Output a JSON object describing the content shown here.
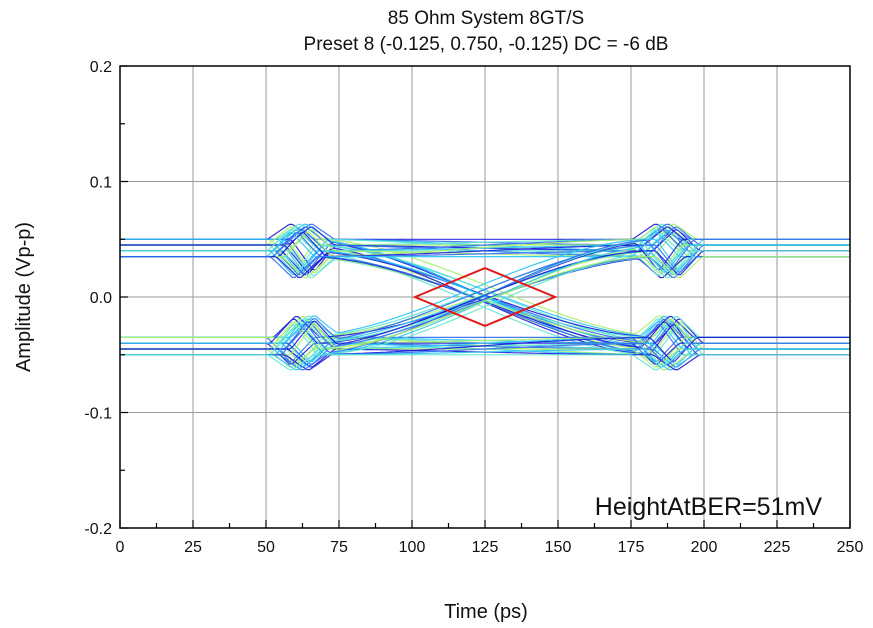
{
  "chart_data": {
    "type": "eye-diagram",
    "title": "85 Ohm System 8GT/S",
    "subtitle": "Preset 8 (-0.125, 0.750, -0.125) DC = -6 dB",
    "xlabel": "Time (ps)",
    "ylabel": "Amplitude (Vp-p)",
    "xlim": [
      0,
      250
    ],
    "ylim": [
      -0.2,
      0.2
    ],
    "x_ticks": [
      "0",
      "25",
      "50",
      "75",
      "100",
      "125",
      "150",
      "175",
      "200",
      "225",
      "250"
    ],
    "y_ticks": [
      "0.2",
      "0.1",
      "0.0",
      "-0.1",
      "-0.2"
    ],
    "grid": true,
    "annotation": "HeightAtBER=51mV",
    "eye_mask": {
      "color": "#e11b1b",
      "points": [
        [
          101,
          0.0
        ],
        [
          125,
          0.025
        ],
        [
          149,
          0.0
        ],
        [
          125,
          -0.025
        ]
      ]
    },
    "trace_colors": [
      "#1a1ad6",
      "#2d6cf0",
      "#28c3f5",
      "#5fe6d2",
      "#a6f06a"
    ]
  }
}
